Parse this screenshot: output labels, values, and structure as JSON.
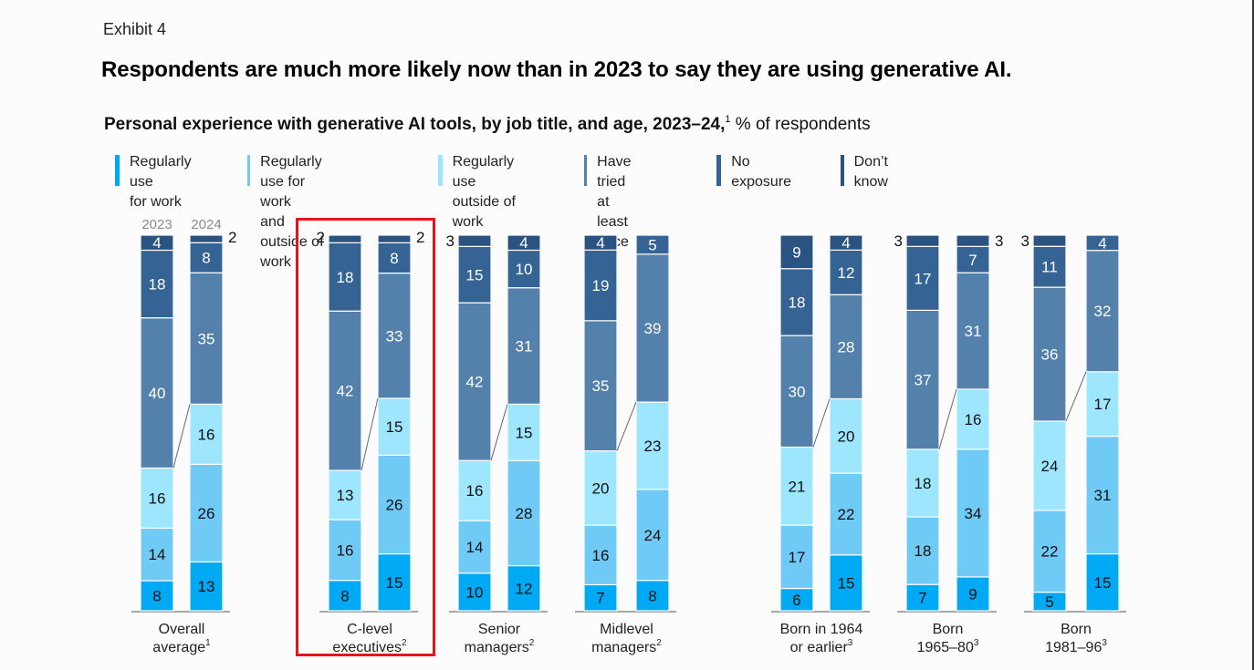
{
  "exhibit_label": "Exhibit 4",
  "title": "Respondents are much more likely now than in 2023 to say they are using generative AI.",
  "subtitle": {
    "bold": "Personal experience with generative AI tools, by job title, and age, 2023–24,",
    "footnote": "1",
    "rest": " % of respondents"
  },
  "colors": {
    "regular_work": "#00a9f4",
    "regular_both": "#6fcaf5",
    "regular_outside": "#9ee6fd",
    "tried_once": "#5480ac",
    "no_exposure": "#356494",
    "dont_know": "#2b5382",
    "highlight": "#e8141b"
  },
  "chart_data": {
    "type": "bar",
    "stacked": true,
    "title": "Personal experience with generative AI tools, by job title, and age, 2023–24",
    "ylabel": "% of respondents",
    "xlabel": "",
    "ylim": [
      0,
      100
    ],
    "grid": false,
    "legend_position": "top",
    "year_labels": [
      "2023",
      "2024"
    ],
    "series_names": [
      "Regularly use for work",
      "Regularly use for work and outside of work",
      "Regularly use outside of work",
      "Have tried at least once",
      "No exposure",
      "Don’t know"
    ],
    "legend": [
      {
        "key": "regular_work",
        "label": "Regularly use\nfor work"
      },
      {
        "key": "regular_both",
        "label": "Regularly use for work\nand outside of work"
      },
      {
        "key": "regular_outside",
        "label": "Regularly use\noutside of work"
      },
      {
        "key": "tried_once",
        "label": "Have tried\nat least once"
      },
      {
        "key": "no_exposure",
        "label": "No exposure"
      },
      {
        "key": "dont_know",
        "label": "Don’t know"
      }
    ],
    "categories": [
      {
        "label": "Overall",
        "label2": "average",
        "footnote": "1",
        "bars": [
          {
            "year": "2023",
            "values": [
              8,
              14,
              16,
              40,
              18,
              4
            ]
          },
          {
            "year": "2024",
            "values": [
              13,
              26,
              16,
              35,
              8,
              2
            ]
          }
        ]
      },
      {
        "label": "C-level",
        "label2": "executives",
        "footnote": "2",
        "highlighted": true,
        "bars": [
          {
            "year": "2023",
            "values": [
              8,
              16,
              13,
              42,
              18,
              2
            ]
          },
          {
            "year": "2024",
            "values": [
              15,
              26,
              15,
              33,
              8,
              2
            ]
          }
        ]
      },
      {
        "label": "Senior",
        "label2": "managers",
        "footnote": "2",
        "bars": [
          {
            "year": "2023",
            "values": [
              10,
              14,
              16,
              42,
              15,
              3
            ]
          },
          {
            "year": "2024",
            "values": [
              12,
              28,
              15,
              31,
              10,
              4
            ]
          }
        ]
      },
      {
        "label": "Midlevel",
        "label2": "managers",
        "footnote": "2",
        "bars": [
          {
            "year": "2023",
            "values": [
              7,
              16,
              20,
              35,
              19,
              4
            ]
          },
          {
            "year": "2024",
            "values": [
              8,
              24,
              23,
              39,
              5,
              0
            ]
          }
        ]
      },
      {
        "label": "Born in 1964",
        "label2": "or earlier",
        "footnote": "3",
        "bars": [
          {
            "year": "2023",
            "values": [
              6,
              17,
              21,
              30,
              18,
              9
            ]
          },
          {
            "year": "2024",
            "values": [
              15,
              22,
              20,
              28,
              12,
              4
            ]
          }
        ]
      },
      {
        "label": "Born",
        "label2": "1965–80",
        "footnote": "3",
        "bars": [
          {
            "year": "2023",
            "values": [
              7,
              18,
              18,
              37,
              17,
              3
            ]
          },
          {
            "year": "2024",
            "values": [
              9,
              34,
              16,
              31,
              7,
              3
            ]
          }
        ]
      },
      {
        "label": "Born",
        "label2": "1981–96",
        "footnote": "3",
        "bars": [
          {
            "year": "2023",
            "values": [
              5,
              22,
              24,
              36,
              11,
              3
            ]
          },
          {
            "year": "2024",
            "values": [
              15,
              31,
              17,
              32,
              4,
              0
            ]
          }
        ]
      }
    ]
  }
}
